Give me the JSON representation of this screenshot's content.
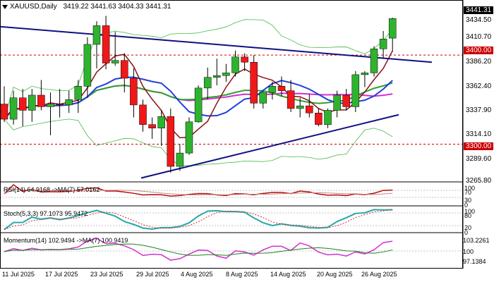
{
  "header": {
    "symbol": "XAUUSD,Daily",
    "ohlc": "3419.22 3441.63 3404.33 3441.31"
  },
  "price_axis": {
    "ticks": [
      "3434.50",
      "3410.70",
      "3386.20",
      "3362.40",
      "3337.90",
      "3314.10",
      "3289.60",
      "3265.80"
    ],
    "current_price": "3441.31",
    "level_3400": "3400.00",
    "level_3300": "3300.00"
  },
  "dates": [
    "11 Jul 2025",
    "17 Jul 2025",
    "23 Jul 2025",
    "29 Jul 2025",
    "4 Aug 2025",
    "8 Aug 2025",
    "14 Aug 2025",
    "20 Aug 2025",
    "26 Aug 2025"
  ],
  "indicators": {
    "rsi": {
      "label": "RSI(14) 64.9168 ->MA(7) 57.0162",
      "axis": [
        "100",
        "70",
        "30",
        "0"
      ]
    },
    "stoch": {
      "label": "Stoch(5,3,3) 97.1073 95.9472",
      "axis": [
        "100",
        "80",
        "20",
        "0"
      ]
    },
    "momentum": {
      "label": "Momentum(14) 102.9494 ->MA(7) 100.9419",
      "axis": [
        "103.2261",
        "100",
        "97.1384"
      ]
    }
  },
  "colors": {
    "bull": "#2fb32f",
    "bear": "#f01818",
    "trend": "#101080",
    "levels": "#cc0000"
  },
  "chart_data": {
    "type": "candlestick",
    "title": "XAUUSD,Daily",
    "ylim": [
      3260,
      3446
    ],
    "horizontal_levels": [
      3400.0,
      3300.0
    ],
    "candles": [
      [
        3345,
        3365,
        3325,
        3328
      ],
      [
        3328,
        3360,
        3322,
        3352
      ],
      [
        3352,
        3362,
        3320,
        3338
      ],
      [
        3338,
        3362,
        3325,
        3355
      ],
      [
        3355,
        3372,
        3338,
        3342
      ],
      [
        3342,
        3358,
        3310,
        3345
      ],
      [
        3345,
        3362,
        3330,
        3344
      ],
      [
        3344,
        3360,
        3335,
        3350
      ],
      [
        3350,
        3372,
        3335,
        3365
      ],
      [
        3365,
        3420,
        3352,
        3412
      ],
      [
        3412,
        3438,
        3385,
        3433
      ],
      [
        3433,
        3444,
        3384,
        3391
      ],
      [
        3391,
        3426,
        3388,
        3394
      ],
      [
        3394,
        3402,
        3358,
        3374
      ],
      [
        3374,
        3385,
        3330,
        3344
      ],
      [
        3344,
        3350,
        3314,
        3322
      ],
      [
        3322,
        3330,
        3306,
        3318
      ],
      [
        3318,
        3338,
        3298,
        3331
      ],
      [
        3331,
        3340,
        3268,
        3275
      ],
      [
        3275,
        3300,
        3270,
        3290
      ],
      [
        3290,
        3330,
        3288,
        3325
      ],
      [
        3325,
        3366,
        3324,
        3363
      ],
      [
        3363,
        3386,
        3350,
        3375
      ],
      [
        3375,
        3396,
        3366,
        3377
      ],
      [
        3377,
        3390,
        3370,
        3380
      ],
      [
        3380,
        3405,
        3376,
        3398
      ],
      [
        3398,
        3402,
        3382,
        3392
      ],
      [
        3392,
        3400,
        3340,
        3346
      ],
      [
        3346,
        3360,
        3340,
        3358
      ],
      [
        3358,
        3370,
        3350,
        3365
      ],
      [
        3365,
        3376,
        3354,
        3360
      ],
      [
        3360,
        3372,
        3336,
        3340
      ],
      [
        3340,
        3352,
        3330,
        3343
      ],
      [
        3343,
        3356,
        3330,
        3335
      ],
      [
        3335,
        3340,
        3320,
        3322
      ],
      [
        3322,
        3340,
        3318,
        3338
      ],
      [
        3338,
        3360,
        3330,
        3355
      ],
      [
        3355,
        3362,
        3338,
        3342
      ],
      [
        3342,
        3382,
        3336,
        3378
      ],
      [
        3378,
        3382,
        3364,
        3380
      ],
      [
        3380,
        3410,
        3376,
        3407
      ],
      [
        3407,
        3427,
        3396,
        3418
      ],
      [
        3419,
        3442,
        3404,
        3441
      ]
    ],
    "series": []
  }
}
